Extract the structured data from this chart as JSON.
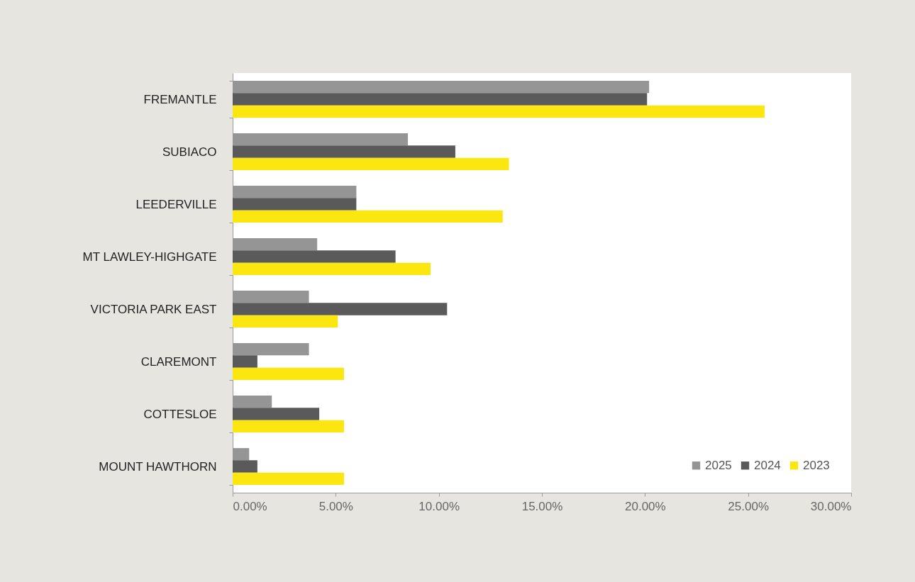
{
  "chart_data": {
    "type": "bar",
    "orientation": "horizontal",
    "categories": [
      "FREMANTLE",
      "SUBIACO",
      "LEEDERVILLE",
      "MT LAWLEY-HIGHGATE",
      "VICTORIA PARK EAST",
      "CLAREMONT",
      "COTTESLOE",
      "MOUNT HAWTHORN"
    ],
    "series": [
      {
        "name": "2025",
        "color": "#959595",
        "values": [
          20.2,
          8.5,
          6.0,
          4.1,
          3.7,
          3.7,
          1.9,
          0.8
        ]
      },
      {
        "name": "2024",
        "color": "#5a5a5a",
        "values": [
          20.1,
          10.8,
          6.0,
          7.9,
          10.4,
          1.2,
          4.2,
          1.2
        ]
      },
      {
        "name": "2023",
        "color": "#fbe610",
        "values": [
          25.8,
          13.4,
          13.1,
          9.6,
          5.1,
          5.4,
          5.4,
          5.4
        ]
      }
    ],
    "xlim": [
      0,
      30
    ],
    "xticks": [
      {
        "value": 0,
        "label": "0.00%"
      },
      {
        "value": 5,
        "label": "5.00%"
      },
      {
        "value": 10,
        "label": "10.00%"
      },
      {
        "value": 15,
        "label": "15.00%"
      },
      {
        "value": 20,
        "label": "20.00%"
      },
      {
        "value": 25,
        "label": "25.00%"
      },
      {
        "value": 30,
        "label": "30.00%"
      }
    ],
    "grid": false,
    "legend": "bottom right"
  }
}
